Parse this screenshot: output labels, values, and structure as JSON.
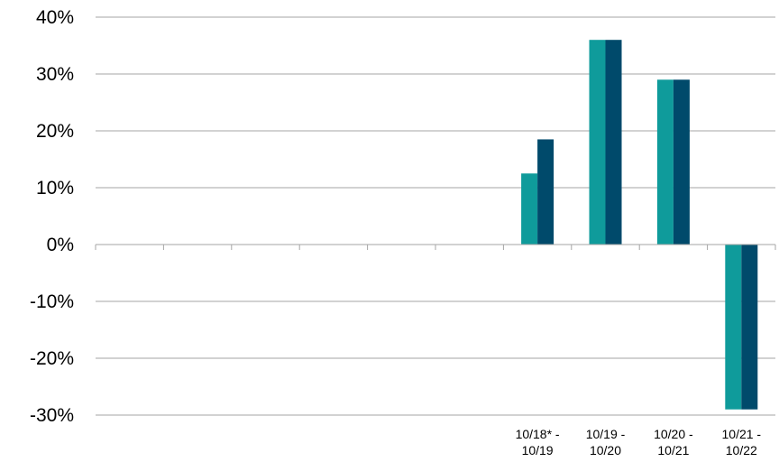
{
  "chart_data": {
    "type": "bar",
    "categories": [
      "",
      "",
      "",
      "",
      "",
      "",
      "10/18* - 10/19",
      "10/19 - 10/20",
      "10/20 - 10/21",
      "10/21 - 10/22"
    ],
    "category_label_lines": [
      [],
      [],
      [],
      [],
      [],
      [],
      [
        "10/18* -",
        "10/19"
      ],
      [
        "10/19 -",
        "10/20"
      ],
      [
        "10/20 -",
        "10/21"
      ],
      [
        "10/21 -",
        "10/22"
      ]
    ],
    "series": [
      {
        "color": "#0f9b9b",
        "values": [
          null,
          null,
          null,
          null,
          null,
          null,
          12.5,
          36,
          29,
          -29
        ]
      },
      {
        "color": "#004a6b",
        "values": [
          null,
          null,
          null,
          null,
          null,
          null,
          18.5,
          36,
          29,
          -29
        ]
      }
    ],
    "ylim": [
      -30,
      40
    ],
    "yticks": [
      40,
      30,
      20,
      10,
      0,
      -10,
      -20,
      -30
    ],
    "ytick_labels": [
      "40%",
      "30%",
      "20%",
      "10%",
      "0%",
      "-10%",
      "-20%",
      "-30%"
    ],
    "grid": true,
    "colors": {
      "gridline": "#a6a6a6",
      "axis": "#a6a6a6",
      "text": "#000000"
    }
  }
}
